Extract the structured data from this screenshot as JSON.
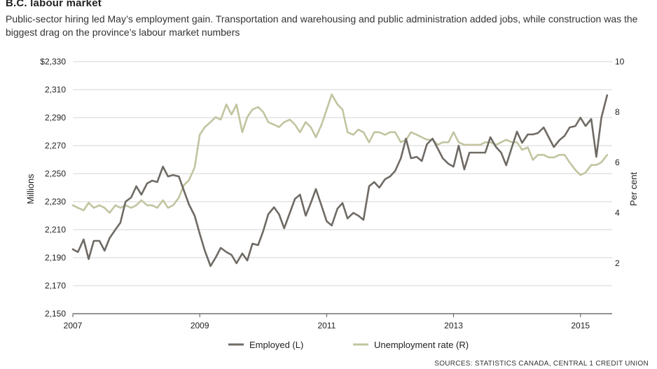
{
  "title": "B.C. labour market",
  "subtitle": "Public-sector hiring led May’s employment gain. Transportation and warehousing and public administration added jobs, while construction was the biggest drag on the province’s labour market numbers",
  "source": "SOURCES: STATISTICS CANADA, CENTRAL 1 CREDIT UNION",
  "colors": {
    "employed": "#6f6a64",
    "unemployment": "#c2c4a0",
    "grid": "#c9c9c9",
    "axis": "#555555"
  },
  "chart_data": {
    "type": "line",
    "ylabel_left": "Millions",
    "ylabel_right": "Per cent",
    "ylim_left": [
      2150,
      2330
    ],
    "ylim_right": [
      0,
      10
    ],
    "yticks_left": [
      "$2,330",
      "2,310",
      "2,290",
      "2,270",
      "2,250",
      "2,230",
      "2,210",
      "2,190",
      "2,170",
      "2,150"
    ],
    "yticks_right": [
      "10",
      "8",
      "6",
      "4",
      "2"
    ],
    "xticks": [
      "2007",
      "2009",
      "2011",
      "2013",
      "2015"
    ],
    "xlim": [
      2007.0,
      2015.5
    ],
    "legend_placement": "bottom-center",
    "grid": true,
    "series": [
      {
        "name": "Employed (L)",
        "axis": "left",
        "color": "#6f6a64",
        "x": [
          2007.0,
          2007.08,
          2007.17,
          2007.25,
          2007.33,
          2007.42,
          2007.5,
          2007.58,
          2007.67,
          2007.75,
          2007.83,
          2007.92,
          2008.0,
          2008.08,
          2008.17,
          2008.25,
          2008.33,
          2008.42,
          2008.5,
          2008.58,
          2008.67,
          2008.75,
          2008.83,
          2008.92,
          2009.0,
          2009.08,
          2009.17,
          2009.25,
          2009.33,
          2009.42,
          2009.5,
          2009.58,
          2009.67,
          2009.75,
          2009.83,
          2009.92,
          2010.0,
          2010.08,
          2010.17,
          2010.25,
          2010.33,
          2010.42,
          2010.5,
          2010.58,
          2010.67,
          2010.75,
          2010.83,
          2010.92,
          2011.0,
          2011.08,
          2011.17,
          2011.25,
          2011.33,
          2011.42,
          2011.5,
          2011.58,
          2011.67,
          2011.75,
          2011.83,
          2011.92,
          2012.0,
          2012.08,
          2012.17,
          2012.25,
          2012.33,
          2012.42,
          2012.5,
          2012.58,
          2012.67,
          2012.75,
          2012.83,
          2012.92,
          2013.0,
          2013.08,
          2013.17,
          2013.25,
          2013.33,
          2013.42,
          2013.5,
          2013.58,
          2013.67,
          2013.75,
          2013.83,
          2013.92,
          2014.0,
          2014.08,
          2014.17,
          2014.25,
          2014.33,
          2014.42,
          2014.5,
          2014.58,
          2014.67,
          2014.75,
          2014.83,
          2014.92,
          2015.0,
          2015.08,
          2015.17,
          2015.25,
          2015.33,
          2015.42
        ],
        "y": [
          2196,
          2194,
          2203,
          2189,
          2202,
          2202,
          2195,
          2204,
          2210,
          2215,
          2230,
          2233,
          2241,
          2235,
          2243,
          2245,
          2244,
          2255,
          2248,
          2249,
          2248,
          2238,
          2228,
          2220,
          2207,
          2195,
          2184,
          2190,
          2197,
          2194,
          2192,
          2186,
          2193,
          2188,
          2200,
          2199,
          2209,
          2221,
          2226,
          2221,
          2211,
          2222,
          2232,
          2235,
          2220,
          2229,
          2239,
          2227,
          2216,
          2213,
          2225,
          2229,
          2218,
          2222,
          2220,
          2217,
          2241,
          2244,
          2240,
          2246,
          2248,
          2252,
          2261,
          2275,
          2261,
          2262,
          2259,
          2271,
          2275,
          2268,
          2261,
          2257,
          2255,
          2270,
          2253,
          2265,
          2265,
          2265,
          2265,
          2276,
          2269,
          2265,
          2256,
          2269,
          2280,
          2272,
          2278,
          2278,
          2279,
          2283,
          2276,
          2269,
          2274,
          2277,
          2283,
          2284,
          2290,
          2284,
          2289,
          2262,
          2290,
          2306
        ]
      },
      {
        "name": "Unemployment rate (R)",
        "axis": "right",
        "color": "#c2c4a0",
        "x": [
          2007.0,
          2007.08,
          2007.17,
          2007.25,
          2007.33,
          2007.42,
          2007.5,
          2007.58,
          2007.67,
          2007.75,
          2007.83,
          2007.92,
          2008.0,
          2008.08,
          2008.17,
          2008.25,
          2008.33,
          2008.42,
          2008.5,
          2008.58,
          2008.67,
          2008.75,
          2008.83,
          2008.92,
          2009.0,
          2009.08,
          2009.17,
          2009.25,
          2009.33,
          2009.42,
          2009.5,
          2009.58,
          2009.67,
          2009.75,
          2009.83,
          2009.92,
          2010.0,
          2010.08,
          2010.17,
          2010.25,
          2010.33,
          2010.42,
          2010.5,
          2010.58,
          2010.67,
          2010.75,
          2010.83,
          2010.92,
          2011.0,
          2011.08,
          2011.17,
          2011.25,
          2011.33,
          2011.42,
          2011.5,
          2011.58,
          2011.67,
          2011.75,
          2011.83,
          2011.92,
          2012.0,
          2012.08,
          2012.17,
          2012.25,
          2012.33,
          2012.42,
          2012.5,
          2012.58,
          2012.67,
          2012.75,
          2012.83,
          2012.92,
          2013.0,
          2013.08,
          2013.17,
          2013.25,
          2013.33,
          2013.42,
          2013.5,
          2013.58,
          2013.67,
          2013.75,
          2013.83,
          2013.92,
          2014.0,
          2014.08,
          2014.17,
          2014.25,
          2014.33,
          2014.42,
          2014.5,
          2014.58,
          2014.67,
          2014.75,
          2014.83,
          2014.92,
          2015.0,
          2015.08,
          2015.17,
          2015.25,
          2015.33,
          2015.42
        ],
        "y": [
          4.3,
          4.2,
          4.1,
          4.4,
          4.2,
          4.3,
          4.2,
          4.0,
          4.3,
          4.2,
          4.3,
          4.2,
          4.3,
          4.5,
          4.3,
          4.3,
          4.2,
          4.5,
          4.2,
          4.3,
          4.6,
          5.1,
          5.3,
          5.8,
          7.1,
          7.4,
          7.6,
          7.8,
          7.7,
          8.3,
          7.9,
          8.3,
          7.2,
          7.8,
          8.1,
          8.2,
          8.0,
          7.6,
          7.5,
          7.4,
          7.6,
          7.7,
          7.5,
          7.2,
          7.6,
          7.4,
          7.0,
          7.5,
          8.1,
          8.7,
          8.3,
          8.1,
          7.2,
          7.1,
          7.3,
          7.2,
          6.8,
          7.2,
          7.2,
          7.1,
          7.2,
          7.2,
          6.8,
          6.9,
          7.2,
          7.1,
          7.0,
          6.9,
          6.9,
          6.7,
          6.8,
          6.8,
          7.2,
          6.8,
          6.7,
          6.7,
          6.7,
          6.7,
          6.8,
          6.8,
          6.7,
          6.8,
          6.9,
          6.8,
          6.8,
          6.5,
          6.6,
          6.1,
          6.3,
          6.3,
          6.2,
          6.2,
          6.3,
          6.3,
          6.0,
          5.7,
          5.5,
          5.6,
          5.9,
          5.9,
          6.0,
          6.3
        ]
      }
    ]
  }
}
